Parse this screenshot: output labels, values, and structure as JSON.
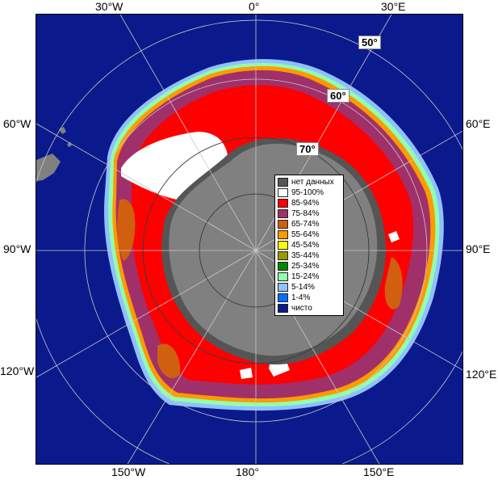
{
  "colors": {
    "ocean": "#0a1a8c",
    "land": "#808080",
    "no_data": "#555555",
    "grid": "#c8c8c8"
  },
  "lon_labels": [
    {
      "id": "lon-30w-top",
      "text": "30°W"
    },
    {
      "id": "lon-0-top",
      "text": "0°"
    },
    {
      "id": "lon-30e-top",
      "text": "30°E"
    },
    {
      "id": "lon-60w",
      "text": "60°W"
    },
    {
      "id": "lon-60e",
      "text": "60°E"
    },
    {
      "id": "lon-90w",
      "text": "90°W"
    },
    {
      "id": "lon-90e",
      "text": "90°E"
    },
    {
      "id": "lon-120w",
      "text": "120°W"
    },
    {
      "id": "lon-120e",
      "text": "120°E"
    },
    {
      "id": "lon-150w",
      "text": "150°W"
    },
    {
      "id": "lon-180",
      "text": "180°"
    },
    {
      "id": "lon-150e",
      "text": "150°E"
    }
  ],
  "lat_labels": [
    {
      "id": "lat-50",
      "text": "50°"
    },
    {
      "id": "lat-60",
      "text": "60°"
    },
    {
      "id": "lat-70",
      "text": "70°"
    }
  ],
  "legend": {
    "items": [
      {
        "label": "нет данных",
        "color": "#555555"
      },
      {
        "label": "95-100%",
        "color": "#ffffff"
      },
      {
        "label": "85-94%",
        "color": "#ff0000"
      },
      {
        "label": "75-84%",
        "color": "#a0306a"
      },
      {
        "label": "65-74%",
        "color": "#d06010"
      },
      {
        "label": "55-64%",
        "color": "#ff9a00"
      },
      {
        "label": "45-54%",
        "color": "#ffff00"
      },
      {
        "label": "35-44%",
        "color": "#999900"
      },
      {
        "label": "25-34%",
        "color": "#008800"
      },
      {
        "label": "15-24%",
        "color": "#90ffb0"
      },
      {
        "label": "5-14%",
        "color": "#90c0ff"
      },
      {
        "label": "1-4%",
        "color": "#0070ff"
      },
      {
        "label": "чисто",
        "color": "#0a1a8c"
      }
    ]
  }
}
